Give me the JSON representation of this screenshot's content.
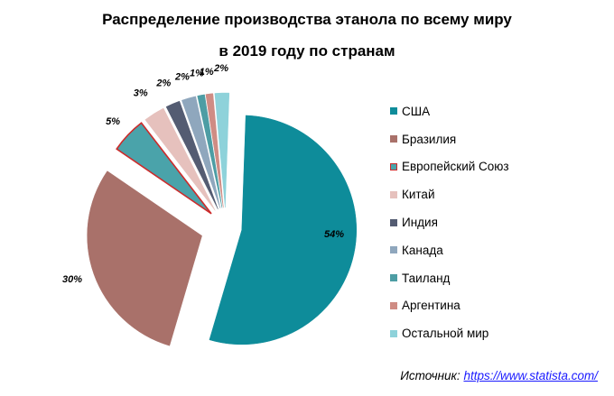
{
  "title_line1": "Распределение производства этанола по всему миру",
  "title_line2": "в 2019 году по странам",
  "source_prefix": "Источник:",
  "source_link": "https://www.statista.com/",
  "chart_data": {
    "type": "pie",
    "title": "Распределение производства этанола по всему миру в 2019 году по странам",
    "legend_position": "right",
    "slices": [
      {
        "name": "США",
        "value": 54,
        "label": "54%",
        "color": "#0e8c9a",
        "stroke": "#0e8c9a"
      },
      {
        "name": "Бразилия",
        "value": 30,
        "label": "30%",
        "color": "#a9716a",
        "stroke": "#a9716a"
      },
      {
        "name": "Европейский Союз",
        "value": 5,
        "label": "5%",
        "color": "#4aa3aa",
        "stroke": "#cc2b2b"
      },
      {
        "name": "Китай",
        "value": 3,
        "label": "3%",
        "color": "#e6c1bd",
        "stroke": "#e6c1bd"
      },
      {
        "name": "Индия",
        "value": 2,
        "label": "2%",
        "color": "#545c72",
        "stroke": "#545c72"
      },
      {
        "name": "Канада",
        "value": 2,
        "label": "2%",
        "color": "#8fa7bd",
        "stroke": "#8fa7bd"
      },
      {
        "name": "Таиланд",
        "value": 1,
        "label": "1%",
        "color": "#4d9da4",
        "stroke": "#4d9da4"
      },
      {
        "name": "Аргентина",
        "value": 1,
        "label": "1%",
        "color": "#cf8c84",
        "stroke": "#cf8c84"
      },
      {
        "name": "Остальной мир",
        "value": 2,
        "label": "2%",
        "color": "#8ed2da",
        "stroke": "#8ed2da"
      }
    ]
  }
}
